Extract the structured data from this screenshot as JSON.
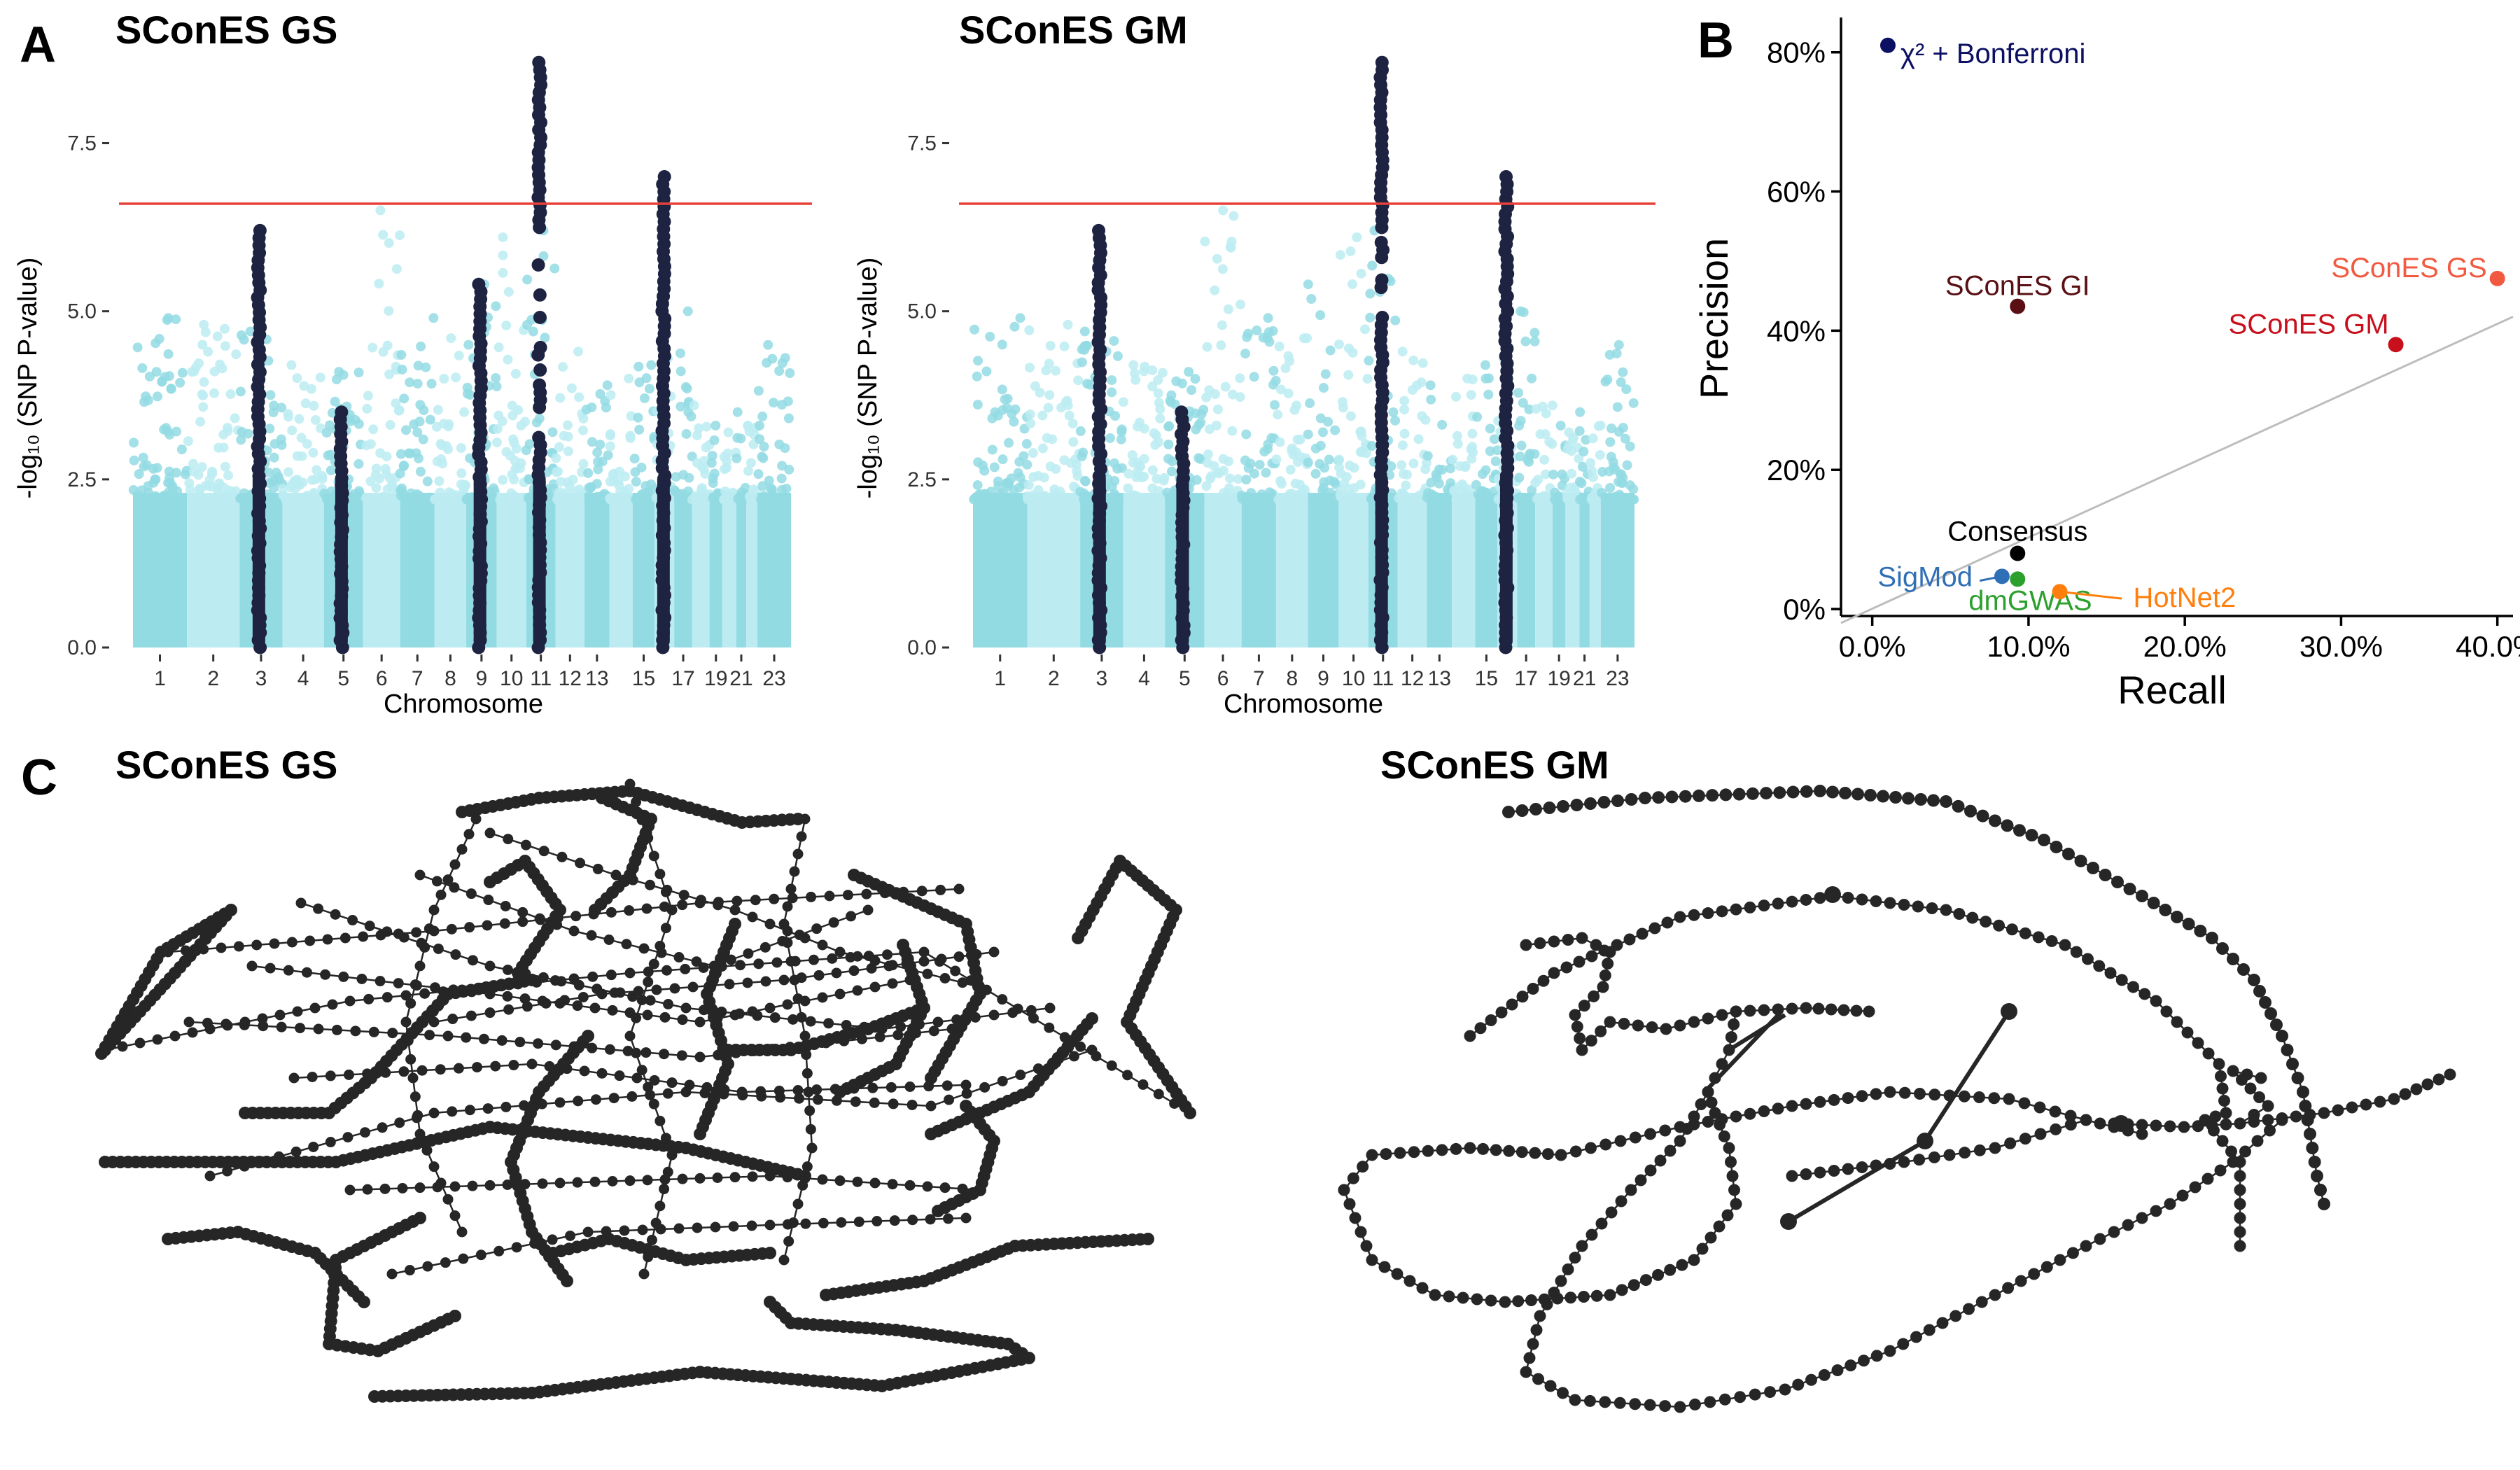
{
  "panels": {
    "A": "A",
    "B": "B",
    "C": "C"
  },
  "chart_data": [
    {
      "id": "manhattan-gs",
      "type": "scatter",
      "title": "SConES GS",
      "xlabel": "Chromosome",
      "ylabel": "-log₁₀ (SNP P-value)",
      "ylim": [
        0,
        8.9
      ],
      "y_ticks": [
        "0.0",
        "2.5",
        "5.0",
        "7.5"
      ],
      "y_tick_values": [
        0,
        2.5,
        5,
        7.5
      ],
      "x_ticks": [
        "1",
        "2",
        "3",
        "4",
        "5",
        "6",
        "7",
        "8",
        "9",
        "10",
        "11",
        "12",
        "13",
        "15",
        "17",
        "19",
        "21",
        "23"
      ],
      "significance_threshold": 6.6,
      "threshold_color": "#e8413a",
      "point_colors": [
        "#93dbe3",
        "#bcecf2"
      ],
      "selected_color": "#1d2340",
      "chromosome_max": [
        {
          "chr": 1,
          "max": 4.9
        },
        {
          "chr": 2,
          "max": 4.8
        },
        {
          "chr": 3,
          "max": 4.7
        },
        {
          "chr": 4,
          "max": 4.2
        },
        {
          "chr": 5,
          "max": 4.1
        },
        {
          "chr": 6,
          "max": 6.5
        },
        {
          "chr": 7,
          "max": 4.9
        },
        {
          "chr": 8,
          "max": 4.6
        },
        {
          "chr": 9,
          "max": 5.4
        },
        {
          "chr": 10,
          "max": 6.1
        },
        {
          "chr": 11,
          "max": 6.2
        },
        {
          "chr": 12,
          "max": 4.4
        },
        {
          "chr": 13,
          "max": 3.9
        },
        {
          "chr": 14,
          "max": 4.0
        },
        {
          "chr": 15,
          "max": 4.2
        },
        {
          "chr": 16,
          "max": 4.3
        },
        {
          "chr": 17,
          "max": 5.0
        },
        {
          "chr": 18,
          "max": 3.6
        },
        {
          "chr": 19,
          "max": 3.3
        },
        {
          "chr": 20,
          "max": 3.2
        },
        {
          "chr": 21,
          "max": 3.5
        },
        {
          "chr": 22,
          "max": 3.3
        },
        {
          "chr": 23,
          "max": 4.5
        }
      ],
      "selected_regions": [
        {
          "chr": 3,
          "max": 6.2
        },
        {
          "chr": 5,
          "max": 3.5
        },
        {
          "chr": 9,
          "max": 5.4
        },
        {
          "chr": 11,
          "max": 8.7
        },
        {
          "chr": 16,
          "max": 7.0
        }
      ]
    },
    {
      "id": "manhattan-gm",
      "type": "scatter",
      "title": "SConES GM",
      "xlabel": "Chromosome",
      "ylabel": "-log₁₀ (SNP P-value)",
      "ylim": [
        0,
        8.9
      ],
      "y_ticks": [
        "0.0",
        "2.5",
        "5.0",
        "7.5"
      ],
      "y_tick_values": [
        0,
        2.5,
        5,
        7.5
      ],
      "x_ticks": [
        "1",
        "2",
        "3",
        "4",
        "5",
        "6",
        "7",
        "8",
        "9",
        "10",
        "11",
        "12",
        "13",
        "15",
        "17",
        "19",
        "21",
        "23"
      ],
      "significance_threshold": 6.6,
      "threshold_color": "#e8413a",
      "point_colors": [
        "#93dbe3",
        "#bcecf2"
      ],
      "selected_color": "#1d2340",
      "chromosome_max": [
        {
          "chr": 1,
          "max": 4.9
        },
        {
          "chr": 2,
          "max": 4.8
        },
        {
          "chr": 3,
          "max": 4.7
        },
        {
          "chr": 4,
          "max": 4.2
        },
        {
          "chr": 5,
          "max": 4.1
        },
        {
          "chr": 6,
          "max": 6.5
        },
        {
          "chr": 7,
          "max": 4.9
        },
        {
          "chr": 8,
          "max": 4.6
        },
        {
          "chr": 9,
          "max": 5.4
        },
        {
          "chr": 10,
          "max": 6.1
        },
        {
          "chr": 11,
          "max": 6.2
        },
        {
          "chr": 12,
          "max": 4.4
        },
        {
          "chr": 13,
          "max": 3.9
        },
        {
          "chr": 14,
          "max": 4.0
        },
        {
          "chr": 15,
          "max": 4.2
        },
        {
          "chr": 16,
          "max": 4.3
        },
        {
          "chr": 17,
          "max": 5.0
        },
        {
          "chr": 18,
          "max": 3.6
        },
        {
          "chr": 19,
          "max": 3.3
        },
        {
          "chr": 20,
          "max": 3.2
        },
        {
          "chr": 21,
          "max": 3.5
        },
        {
          "chr": 22,
          "max": 3.3
        },
        {
          "chr": 23,
          "max": 4.5
        }
      ],
      "selected_regions": [
        {
          "chr": 3,
          "max": 6.2
        },
        {
          "chr": 5,
          "max": 3.5
        },
        {
          "chr": 11,
          "max": 8.7
        },
        {
          "chr": 16,
          "max": 7.0
        }
      ]
    },
    {
      "id": "precision-recall",
      "type": "scatter",
      "xlabel": "Recall",
      "ylabel": "Precision",
      "xlim": [
        -0.02,
        0.41
      ],
      "ylim": [
        -0.01,
        0.85
      ],
      "x_ticks": [
        "0.0%",
        "10.0%",
        "20.0%",
        "30.0%",
        "40.0%"
      ],
      "x_tick_values": [
        0,
        0.1,
        0.2,
        0.3,
        0.4
      ],
      "y_ticks": [
        "0%",
        "20%",
        "40%",
        "60%",
        "80%"
      ],
      "y_tick_values": [
        0,
        0.2,
        0.4,
        0.6,
        0.8
      ],
      "reference_line": {
        "from": [
          -0.02,
          -0.02
        ],
        "to": [
          0.41,
          0.42
        ],
        "color": "#bdbdbd"
      },
      "points": [
        {
          "name": "χ² + Bonferroni",
          "recall": 0.01,
          "precision": 0.81,
          "color": "#0b1063"
        },
        {
          "name": "SConES GI",
          "recall": 0.093,
          "precision": 0.435,
          "color": "#5a0f14"
        },
        {
          "name": "SConES GS",
          "recall": 0.4,
          "precision": 0.475,
          "color": "#f15a40"
        },
        {
          "name": "SConES GM",
          "recall": 0.335,
          "precision": 0.38,
          "color": "#c8101d"
        },
        {
          "name": "Consensus",
          "recall": 0.093,
          "precision": 0.08,
          "color": "#000000"
        },
        {
          "name": "SigMod",
          "recall": 0.083,
          "precision": 0.047,
          "color": "#2f6fb5"
        },
        {
          "name": "dmGWAS",
          "recall": 0.093,
          "precision": 0.043,
          "color": "#2ca02c"
        },
        {
          "name": "HotNet2",
          "recall": 0.12,
          "precision": 0.025,
          "color": "#ff7f0e"
        }
      ]
    },
    {
      "id": "network-gs",
      "type": "scatter",
      "title": "SConES GS",
      "node_color": "#262626"
    },
    {
      "id": "network-gm",
      "type": "scatter",
      "title": "SConES GM",
      "node_color": "#262626"
    }
  ]
}
